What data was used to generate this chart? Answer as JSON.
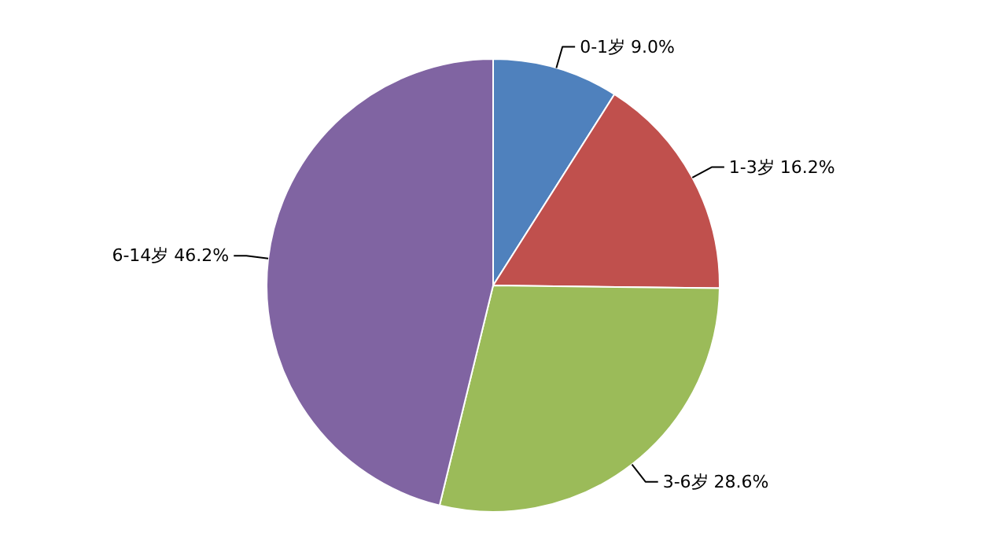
{
  "chart_data": {
    "type": "pie",
    "categories": [
      "0-1岁",
      "1-3岁",
      "3-6岁",
      "6-14岁"
    ],
    "values": [
      9.0,
      16.2,
      28.6,
      46.2
    ],
    "value_labels": [
      "9.0%",
      "16.2%",
      "28.6%",
      "46.2%"
    ],
    "colors": [
      "#4f81bd",
      "#c0504d",
      "#9bbb59",
      "#8064a2"
    ]
  }
}
